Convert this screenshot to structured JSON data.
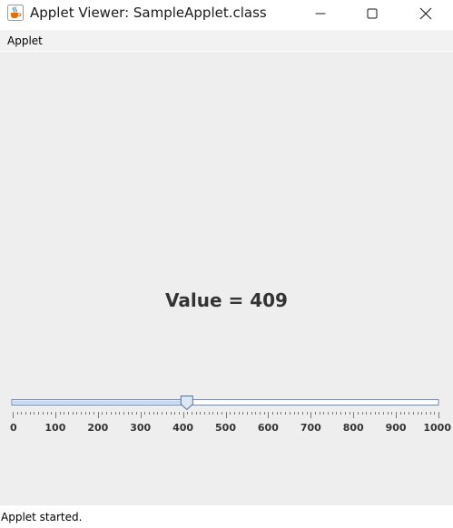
{
  "window": {
    "title": "Applet Viewer: SampleApplet.class",
    "icon": "java-coffee-cup-icon",
    "controls": [
      "minimize-icon",
      "maximize-icon",
      "close-icon"
    ]
  },
  "menubar": {
    "items": [
      {
        "label": "Applet"
      }
    ]
  },
  "applet": {
    "value_text": "Value = 409",
    "slider": {
      "min": 0,
      "max": 1000,
      "value": 409,
      "major_tick_spacing": 100,
      "minor_tick_spacing": 10,
      "tick_labels": [
        "0",
        "100",
        "200",
        "300",
        "400",
        "500",
        "600",
        "700",
        "800",
        "900",
        "1000"
      ],
      "track_color": "#c8d8f0",
      "thumb_color": "#dde8f7"
    }
  },
  "statusbar": {
    "text": "Applet started."
  },
  "colors": {
    "content_bg": "#eeeeee",
    "title_bg": "#ffffff",
    "value_text": "#333333"
  }
}
